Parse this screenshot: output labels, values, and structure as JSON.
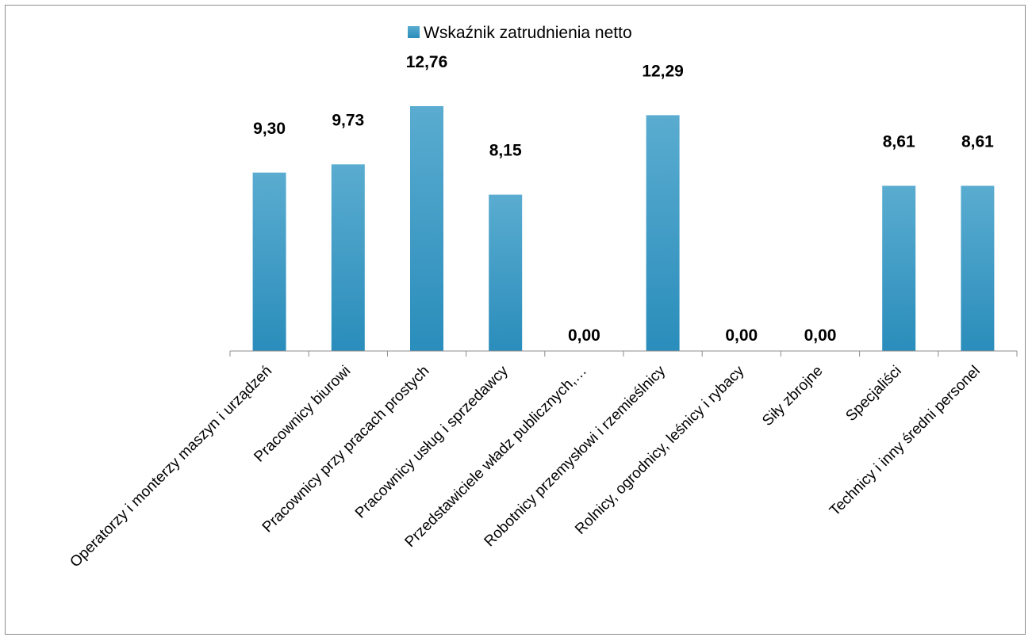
{
  "chart_data": {
    "type": "bar",
    "categories": [
      "Operatorzy i monterzy maszyn i urządzeń",
      "Pracownicy biurowi",
      "Pracownicy przy pracach prostych",
      "Pracownicy usług i sprzedawcy",
      "Przedstawiciele władz publicznych,…",
      "Robotnicy przemysłowi i rzemieślnicy",
      "Rolnicy, ogrodnicy, leśnicy i rybacy",
      "Siły zbrojne",
      "Specjaliści",
      "Technicy i inny średni personel"
    ],
    "series": [
      {
        "name": "Wskaźnik zatrudnienia netto",
        "values": [
          9.3,
          9.73,
          12.76,
          8.15,
          0.0,
          12.29,
          0.0,
          0.0,
          8.61,
          8.61
        ],
        "labels": [
          "9,30",
          "9,73",
          "12,76",
          "8,15",
          "0,00",
          "12,29",
          "0,00",
          "0,00",
          "8,61",
          "8,61"
        ]
      }
    ],
    "ylim": [
      0,
      14
    ],
    "grid": false,
    "legend_position": "top",
    "bar_color": "#2e9bc4",
    "bar_color_light": "#5aacd0",
    "bar_color_dark": "#2a8dbb",
    "axis_color": "#8c8c8c"
  }
}
